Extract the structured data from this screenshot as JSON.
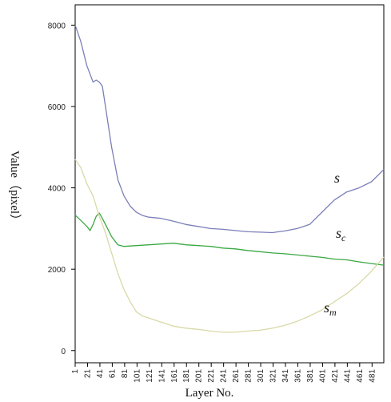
{
  "chart_data": {
    "type": "line",
    "title": "",
    "xlabel": "Layer No.",
    "ylabel": "Value（pixel）",
    "xlim": [
      1,
      500
    ],
    "ylim": [
      -300,
      8500
    ],
    "yticks": [
      0,
      2000,
      4000,
      6000,
      8000
    ],
    "xticks": [
      1,
      21,
      41,
      61,
      81,
      101,
      121,
      141,
      161,
      181,
      201,
      221,
      241,
      261,
      281,
      301,
      321,
      341,
      361,
      381,
      401,
      421,
      441,
      461,
      481
    ],
    "grid": false,
    "legend": "none",
    "series": [
      {
        "color": "#7b7fb8",
        "label": {
          "main": "s",
          "sub": ""
        },
        "x": [
          1,
          10,
          20,
          30,
          35,
          40,
          45,
          50,
          60,
          70,
          80,
          90,
          100,
          110,
          120,
          140,
          160,
          180,
          200,
          220,
          240,
          260,
          280,
          300,
          320,
          330,
          340,
          360,
          380,
          400,
          420,
          440,
          460,
          480,
          500
        ],
        "y": [
          8000,
          7600,
          7000,
          6600,
          6650,
          6600,
          6500,
          6000,
          5000,
          4200,
          3800,
          3550,
          3400,
          3320,
          3280,
          3250,
          3180,
          3100,
          3050,
          3000,
          2980,
          2950,
          2920,
          2910,
          2900,
          2920,
          2940,
          3000,
          3100,
          3400,
          3700,
          3900,
          4000,
          4150,
          4450
        ]
      },
      {
        "color": "#3aa843",
        "label": {
          "main": "s",
          "sub": "c"
        },
        "x": [
          1,
          10,
          20,
          25,
          30,
          35,
          40,
          45,
          50,
          60,
          70,
          80,
          100,
          120,
          140,
          160,
          180,
          200,
          220,
          240,
          260,
          280,
          300,
          320,
          340,
          360,
          380,
          400,
          420,
          440,
          460,
          480,
          500
        ],
        "y": [
          3330,
          3200,
          3050,
          2950,
          3100,
          3300,
          3380,
          3250,
          3100,
          2800,
          2600,
          2560,
          2580,
          2600,
          2620,
          2640,
          2600,
          2580,
          2560,
          2520,
          2500,
          2460,
          2430,
          2400,
          2380,
          2350,
          2320,
          2290,
          2250,
          2230,
          2180,
          2140,
          2100
        ]
      },
      {
        "color": "#d9d9a8",
        "label": {
          "main": "s",
          "sub": "m"
        },
        "x": [
          1,
          10,
          20,
          30,
          40,
          50,
          60,
          70,
          80,
          90,
          100,
          110,
          120,
          140,
          160,
          180,
          200,
          220,
          240,
          260,
          280,
          300,
          320,
          340,
          360,
          380,
          400,
          420,
          440,
          460,
          480,
          500
        ],
        "y": [
          4700,
          4500,
          4100,
          3800,
          3300,
          2900,
          2400,
          1900,
          1500,
          1200,
          950,
          850,
          800,
          700,
          600,
          550,
          520,
          480,
          450,
          450,
          480,
          500,
          550,
          620,
          720,
          850,
          1000,
          1200,
          1400,
          1650,
          1950,
          2300
        ]
      }
    ]
  }
}
